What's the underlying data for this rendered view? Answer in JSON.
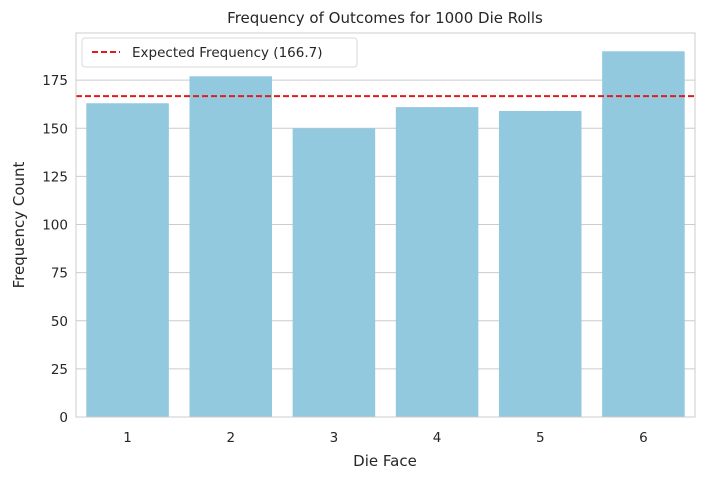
{
  "chart_data": {
    "type": "bar",
    "title": "Frequency of Outcomes for 1000 Die Rolls",
    "xlabel": "Die Face",
    "ylabel": "Frequency Count",
    "categories": [
      "1",
      "2",
      "3",
      "4",
      "5",
      "6"
    ],
    "values": [
      163,
      177,
      150,
      161,
      159,
      190
    ],
    "ylim": [
      0,
      199.5
    ],
    "yticks": [
      0,
      25,
      50,
      75,
      100,
      125,
      150,
      175
    ],
    "grid": "y",
    "bar_color": "#92c9df",
    "reference_line": {
      "value": 166.7,
      "label": "Expected Frequency (166.7)",
      "color": "#e31a1c",
      "style": "dashed"
    },
    "legend_position": "top-left"
  }
}
